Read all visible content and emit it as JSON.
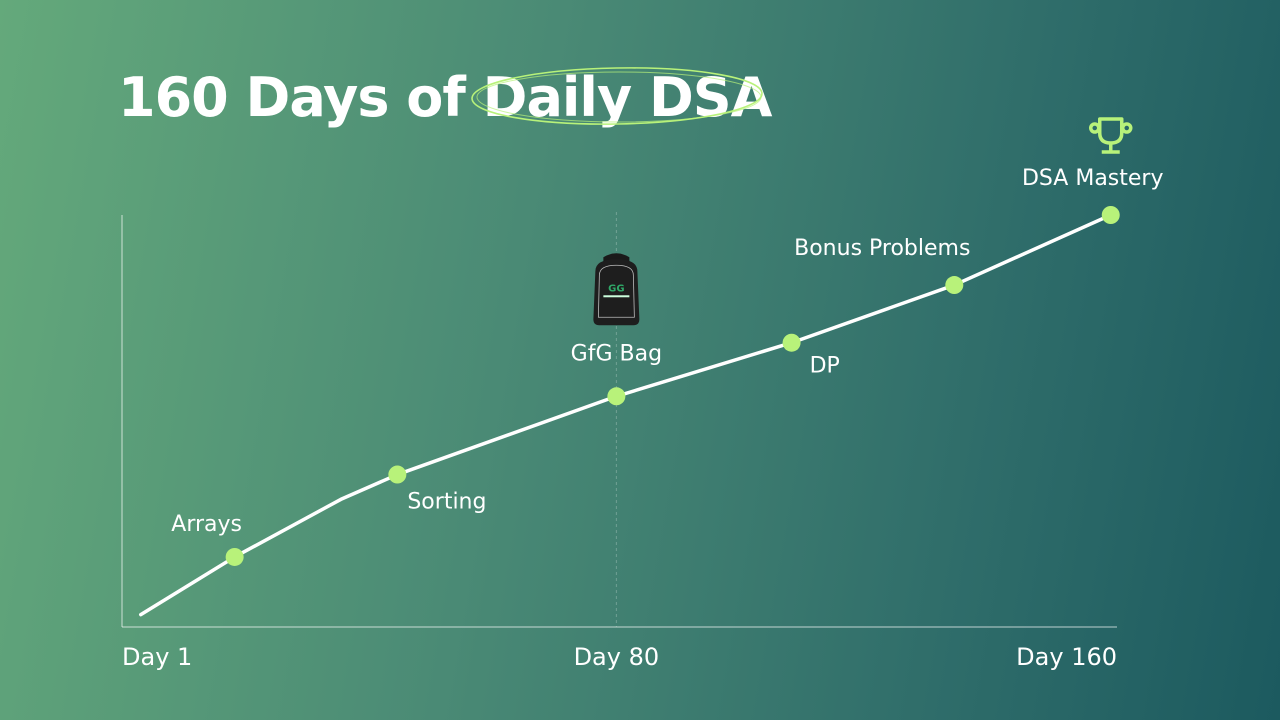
{
  "title": {
    "prefix": "160 Days of ",
    "highlight": "Daily DSA"
  },
  "colors": {
    "accent": "#b8f27a",
    "line": "#ffffff",
    "background_start": "#64a97b",
    "background_end": "#1c5a5f"
  },
  "chart_data": {
    "type": "line",
    "title": "160 Days of Daily DSA",
    "xlabel": "",
    "ylabel": "",
    "xlim": [
      1,
      160
    ],
    "ylim": [
      0,
      100
    ],
    "x_ticks": [
      {
        "value": 1,
        "label": "Day 1"
      },
      {
        "value": 80,
        "label": "Day 80"
      },
      {
        "value": 160,
        "label": "Day 160"
      }
    ],
    "grid": false,
    "reference_line_x": 80,
    "line": {
      "x": [
        4,
        19,
        36,
        45,
        80,
        108,
        134,
        159
      ],
      "y": [
        3,
        17,
        31,
        37,
        56,
        69,
        83,
        100
      ]
    },
    "milestones": [
      {
        "label": "Arrays",
        "x": 19,
        "y": 17
      },
      {
        "label": "Sorting",
        "x": 45,
        "y": 37
      },
      {
        "label": "GfG Bag",
        "x": 80,
        "y": 56,
        "icon": "backpack-icon"
      },
      {
        "label": "DP",
        "x": 108,
        "y": 69
      },
      {
        "label": "Bonus Problems",
        "x": 134,
        "y": 83
      },
      {
        "label": "DSA Mastery",
        "x": 159,
        "y": 100,
        "icon": "trophy-icon"
      }
    ]
  }
}
